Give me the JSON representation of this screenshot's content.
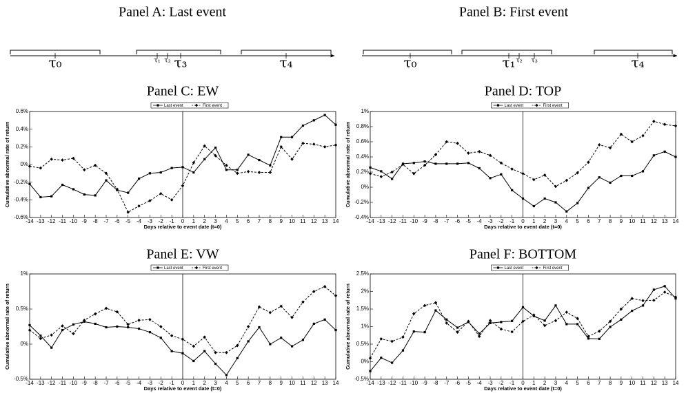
{
  "timelines": [
    {
      "title": "Panel A: Last event",
      "labels": [
        "τ₀",
        "τ₁",
        "τ₂",
        "τ₃",
        "τ₄"
      ]
    },
    {
      "title": "Panel B: First event",
      "labels": [
        "τ₀",
        "τ₁",
        "τ₂",
        "τ₃",
        "τ₄"
      ]
    }
  ],
  "chart_data": [
    {
      "type": "line",
      "title": "Panel C: EW",
      "xlabel": "Days relative to event date (t=0)",
      "ylabel": "Cumulative abnormal rate of return",
      "x": [
        -14,
        -13,
        -12,
        -11,
        -10,
        -9,
        -8,
        -7,
        -6,
        -5,
        -4,
        -3,
        -2,
        -1,
        0,
        1,
        2,
        3,
        4,
        5,
        6,
        7,
        8,
        9,
        10,
        11,
        12,
        13,
        14
      ],
      "xlim": [
        -14,
        14
      ],
      "xticks": [
        -14,
        -13,
        -12,
        -11,
        -10,
        -9,
        -8,
        -7,
        -6,
        -5,
        -4,
        -3,
        -2,
        -1,
        0,
        1,
        2,
        3,
        4,
        5,
        6,
        7,
        8,
        9,
        10,
        11,
        12,
        13,
        14
      ],
      "ylim": [
        -0.6,
        0.6
      ],
      "yticks": [
        {
          "value": -0.6,
          "label": "-0.6%"
        },
        {
          "value": -0.4,
          "label": "-0.4%"
        },
        {
          "value": -0.2,
          "label": "-0.2%"
        },
        {
          "value": 0,
          "label": "0%"
        },
        {
          "value": 0.2,
          "label": "0.2%"
        },
        {
          "value": 0.4,
          "label": "0.4%"
        },
        {
          "value": 0.6,
          "label": "0.6%"
        }
      ],
      "grid": false,
      "legend": "top",
      "series": [
        {
          "name": "Last event",
          "color": "#000000",
          "style": "solid",
          "marker": "square",
          "values": [
            -0.22,
            -0.37,
            -0.36,
            -0.23,
            -0.28,
            -0.34,
            -0.35,
            -0.18,
            -0.29,
            -0.32,
            -0.16,
            -0.1,
            -0.09,
            -0.04,
            -0.03,
            -0.09,
            0.06,
            0.19,
            -0.06,
            -0.06,
            0.11,
            0.05,
            -0.01,
            0.31,
            0.31,
            0.44,
            0.5,
            0.56,
            0.45
          ]
        },
        {
          "name": "First event",
          "color": "#000000",
          "style": "dashed",
          "marker": "diamond",
          "values": [
            -0.02,
            -0.04,
            0.06,
            0.05,
            0.07,
            -0.06,
            -0.01,
            -0.1,
            -0.28,
            -0.54,
            -0.47,
            -0.41,
            -0.33,
            -0.4,
            -0.24,
            0.02,
            0.21,
            0.1,
            -0.01,
            -0.1,
            -0.08,
            -0.09,
            -0.09,
            0.2,
            0.06,
            0.24,
            0.23,
            0.2,
            0.22
          ]
        }
      ]
    },
    {
      "type": "line",
      "title": "Panel D: TOP",
      "xlabel": "Days relative to event date (t=0)",
      "ylabel": "Cumulative abnormal rate of return",
      "x": [
        -14,
        -13,
        -12,
        -11,
        -10,
        -9,
        -8,
        -7,
        -6,
        -5,
        -4,
        -3,
        -2,
        -1,
        0,
        1,
        2,
        3,
        4,
        5,
        6,
        7,
        8,
        9,
        10,
        11,
        12,
        13,
        14
      ],
      "xlim": [
        -14,
        14
      ],
      "xticks": [
        -14,
        -13,
        -12,
        -11,
        -10,
        -9,
        -8,
        -7,
        -6,
        -5,
        -4,
        -3,
        -2,
        -1,
        0,
        1,
        2,
        3,
        4,
        5,
        6,
        7,
        8,
        9,
        10,
        11,
        12,
        13,
        14
      ],
      "ylim": [
        -0.4,
        1
      ],
      "yticks": [
        {
          "value": -0.4,
          "label": "-0.4%"
        },
        {
          "value": -0.2,
          "label": "-0.2%"
        },
        {
          "value": 0,
          "label": "0%"
        },
        {
          "value": 0.2,
          "label": "0.2%"
        },
        {
          "value": 0.4,
          "label": "0.4%"
        },
        {
          "value": 0.6,
          "label": "0.6%"
        },
        {
          "value": 0.8,
          "label": "0.8%"
        },
        {
          "value": 1,
          "label": "1%"
        }
      ],
      "grid": false,
      "legend": "top",
      "series": [
        {
          "name": "Last event",
          "color": "#000000",
          "style": "solid",
          "marker": "square",
          "values": [
            0.26,
            0.21,
            0.11,
            0.31,
            0.32,
            0.34,
            0.31,
            0.31,
            0.31,
            0.32,
            0.25,
            0.12,
            0.17,
            -0.04,
            -0.15,
            -0.25,
            -0.15,
            -0.2,
            -0.32,
            -0.21,
            -0.01,
            0.13,
            0.06,
            0.15,
            0.15,
            0.21,
            0.42,
            0.47,
            0.4
          ]
        },
        {
          "name": "First event",
          "color": "#000000",
          "style": "dashed",
          "marker": "diamond",
          "values": [
            0.18,
            0.14,
            0.2,
            0.3,
            0.18,
            0.29,
            0.43,
            0.6,
            0.58,
            0.45,
            0.47,
            0.42,
            0.32,
            0.24,
            0.18,
            0.1,
            0.16,
            0.01,
            0.09,
            0.19,
            0.33,
            0.56,
            0.52,
            0.7,
            0.6,
            0.68,
            0.87,
            0.83,
            0.81
          ]
        }
      ]
    },
    {
      "type": "line",
      "title": "Panel E: VW",
      "xlabel": "Days relative to event date (t=0)",
      "ylabel": "Cumulative abnormal rate of return",
      "x": [
        -14,
        -13,
        -12,
        -11,
        -10,
        -9,
        -8,
        -7,
        -6,
        -5,
        -4,
        -3,
        -2,
        -1,
        0,
        1,
        2,
        3,
        4,
        5,
        6,
        7,
        8,
        9,
        10,
        11,
        12,
        13,
        14
      ],
      "xlim": [
        -14,
        14
      ],
      "xticks": [
        -14,
        -13,
        -12,
        -11,
        -10,
        -9,
        -8,
        -7,
        -6,
        -5,
        -4,
        -3,
        -2,
        -1,
        0,
        1,
        2,
        3,
        4,
        5,
        6,
        7,
        8,
        9,
        10,
        11,
        12,
        13,
        14
      ],
      "ylim": [
        -0.5,
        1
      ],
      "yticks": [
        {
          "value": -0.5,
          "label": "-0.5%"
        },
        {
          "value": 0,
          "label": "0%"
        },
        {
          "value": 0.5,
          "label": "0.5%"
        },
        {
          "value": 1,
          "label": "1%"
        }
      ],
      "grid": false,
      "legend": "top",
      "series": [
        {
          "name": "Last event",
          "color": "#000000",
          "style": "solid",
          "marker": "square",
          "values": [
            0.27,
            0.12,
            -0.05,
            0.2,
            0.28,
            0.32,
            0.29,
            0.24,
            0.25,
            0.24,
            0.22,
            0.17,
            0.09,
            -0.1,
            -0.13,
            -0.24,
            -0.1,
            -0.28,
            -0.44,
            -0.2,
            0.04,
            0.24,
            0.0,
            0.09,
            -0.03,
            0.06,
            0.29,
            0.35,
            0.2
          ]
        },
        {
          "name": "First event",
          "color": "#000000",
          "style": "dashed",
          "marker": "diamond",
          "values": [
            0.2,
            0.08,
            0.13,
            0.26,
            0.15,
            0.34,
            0.43,
            0.51,
            0.46,
            0.28,
            0.34,
            0.35,
            0.25,
            0.12,
            0.07,
            -0.03,
            0.1,
            -0.12,
            -0.12,
            -0.02,
            0.25,
            0.53,
            0.45,
            0.54,
            0.38,
            0.6,
            0.75,
            0.82,
            0.69
          ]
        }
      ]
    },
    {
      "type": "line",
      "title": "Panel F: BOTTOM",
      "xlabel": "Days relative to event date (t=0)",
      "ylabel": "Cumulative abnormal rate of return",
      "x": [
        -14,
        -13,
        -12,
        -11,
        -10,
        -9,
        -8,
        -7,
        -6,
        -5,
        -4,
        -3,
        -2,
        -1,
        0,
        1,
        2,
        3,
        4,
        5,
        6,
        7,
        8,
        9,
        10,
        11,
        12,
        13,
        14
      ],
      "xlim": [
        -14,
        14
      ],
      "xticks": [
        -14,
        -13,
        -12,
        -11,
        -10,
        -9,
        -8,
        -7,
        -6,
        -5,
        -4,
        -3,
        -2,
        -1,
        0,
        1,
        2,
        3,
        4,
        5,
        6,
        7,
        8,
        9,
        10,
        11,
        12,
        13,
        14
      ],
      "ylim": [
        -0.5,
        2.5
      ],
      "yticks": [
        {
          "value": -0.5,
          "label": "-0.5%"
        },
        {
          "value": 0,
          "label": "0%"
        },
        {
          "value": 0.5,
          "label": "0.5%"
        },
        {
          "value": 1,
          "label": "1%"
        },
        {
          "value": 1.5,
          "label": "1.5%"
        },
        {
          "value": 2,
          "label": "2%"
        },
        {
          "value": 2.5,
          "label": "2.5%"
        }
      ],
      "grid": false,
      "legend": "top",
      "series": [
        {
          "name": "Last event",
          "color": "#000000",
          "style": "solid",
          "marker": "square",
          "values": [
            -0.27,
            0.11,
            -0.03,
            0.32,
            0.86,
            0.84,
            1.46,
            1.2,
            0.97,
            1.13,
            0.8,
            1.1,
            1.13,
            1.16,
            1.55,
            1.3,
            1.17,
            1.6,
            1.07,
            1.07,
            0.66,
            0.65,
            0.99,
            1.2,
            1.45,
            1.6,
            2.05,
            2.15,
            1.8
          ]
        },
        {
          "name": "First event",
          "color": "#000000",
          "style": "dashed",
          "marker": "diamond",
          "values": [
            0.1,
            0.65,
            0.58,
            0.7,
            1.37,
            1.6,
            1.68,
            1.1,
            0.84,
            1.15,
            0.72,
            1.17,
            0.93,
            0.85,
            1.15,
            1.33,
            1.03,
            1.17,
            1.41,
            1.23,
            0.72,
            0.87,
            1.15,
            1.5,
            1.8,
            1.74,
            1.75,
            1.98,
            1.84
          ]
        }
      ]
    }
  ]
}
